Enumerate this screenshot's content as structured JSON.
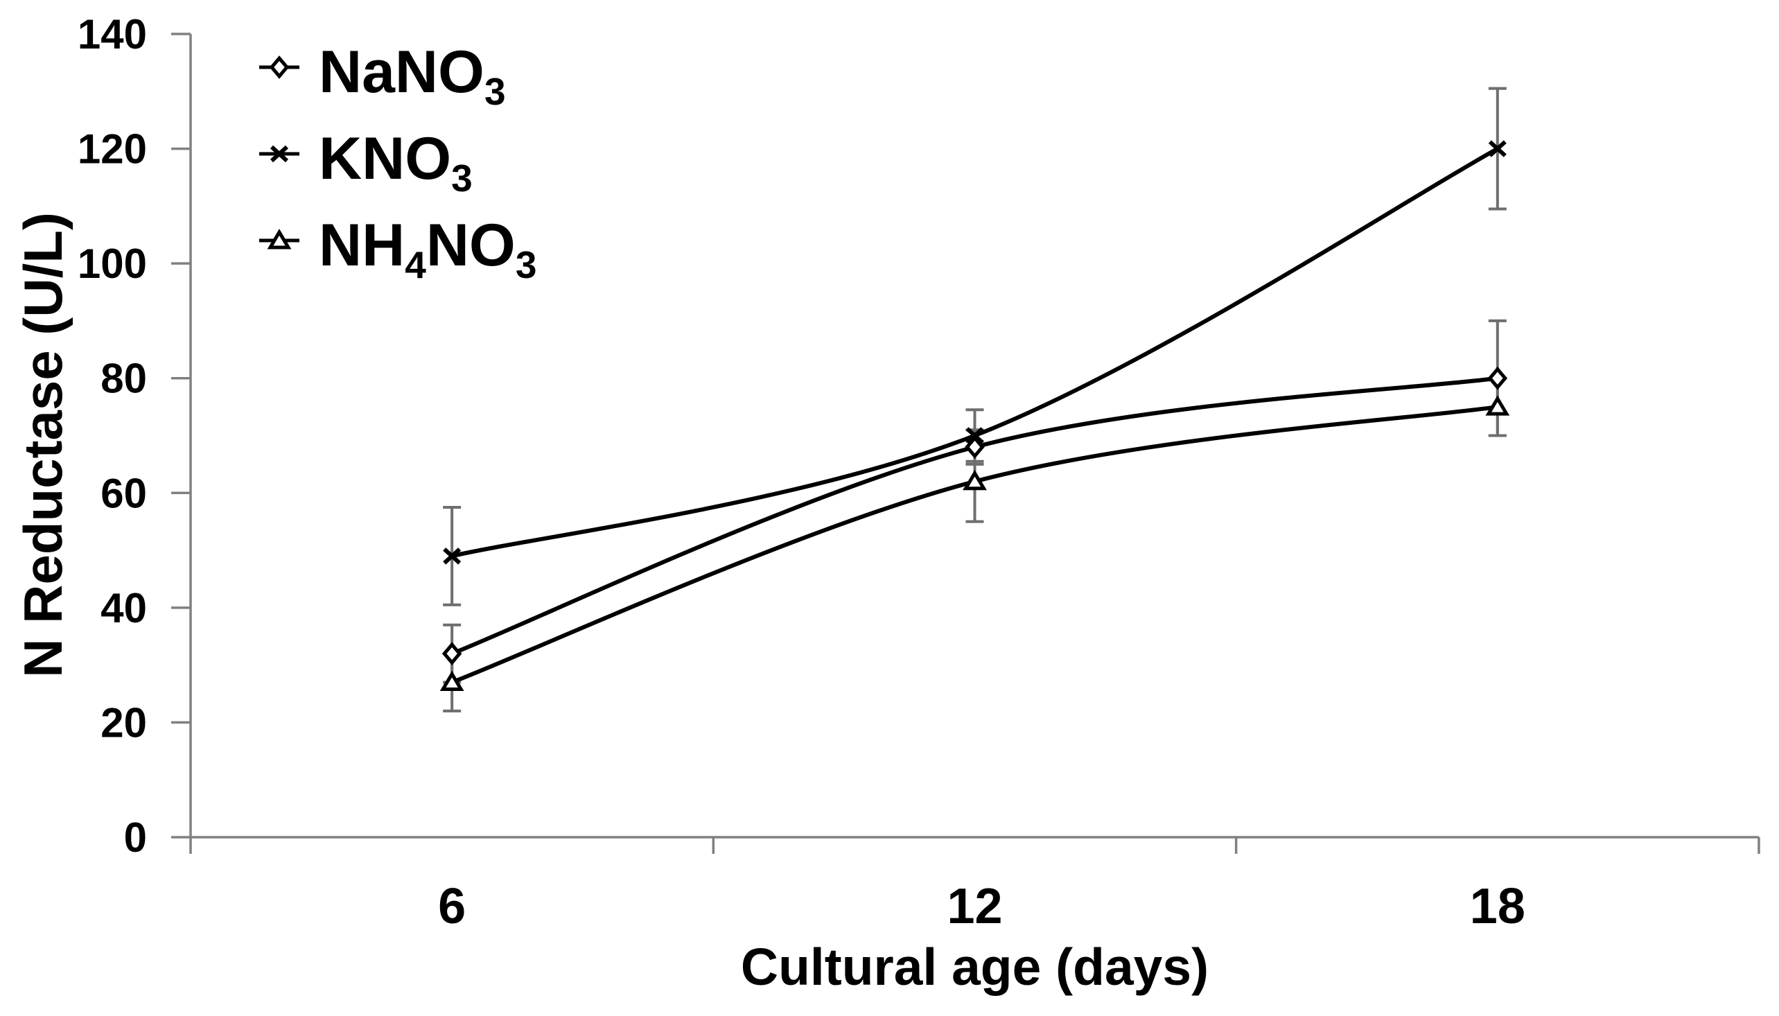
{
  "chart_data": {
    "type": "line",
    "title": "",
    "xlabel": "Cultural age (days)",
    "ylabel": "N Reductase (U/L)",
    "x_tick_labels": [
      "6",
      "12",
      "18"
    ],
    "x_values": [
      6,
      12,
      18
    ],
    "y_ticks": [
      0,
      20,
      40,
      60,
      80,
      100,
      120,
      140
    ],
    "ylim": [
      0,
      140
    ],
    "grid": false,
    "line_style": "smooth",
    "legend_position": "inside-top-left",
    "colors": {
      "line": "#000000",
      "marker_fill": "#ffffff",
      "error_bar": "#6e6e6e",
      "axis": "#808080",
      "text": "#000000",
      "background": "#ffffff"
    },
    "series": [
      {
        "name": "NaNO3",
        "label_parts": [
          {
            "text": "NaNO",
            "sub": false
          },
          {
            "text": "3",
            "sub": true
          }
        ],
        "marker": "diamond-open",
        "values": [
          32,
          68,
          80
        ],
        "errors": [
          5,
          3,
          10
        ]
      },
      {
        "name": "KNO3",
        "label_parts": [
          {
            "text": "KNO",
            "sub": false
          },
          {
            "text": "3",
            "sub": true
          }
        ],
        "marker": "x-cross",
        "values": [
          49,
          70,
          120
        ],
        "errors": [
          8.5,
          4.5,
          10.5
        ]
      },
      {
        "name": "NH4NO3",
        "label_parts": [
          {
            "text": "NH",
            "sub": false
          },
          {
            "text": "4",
            "sub": true
          },
          {
            "text": "NO",
            "sub": false
          },
          {
            "text": "3",
            "sub": true
          }
        ],
        "marker": "triangle-open",
        "values": [
          27,
          62,
          75
        ],
        "errors": [
          5,
          7,
          5
        ]
      }
    ]
  }
}
